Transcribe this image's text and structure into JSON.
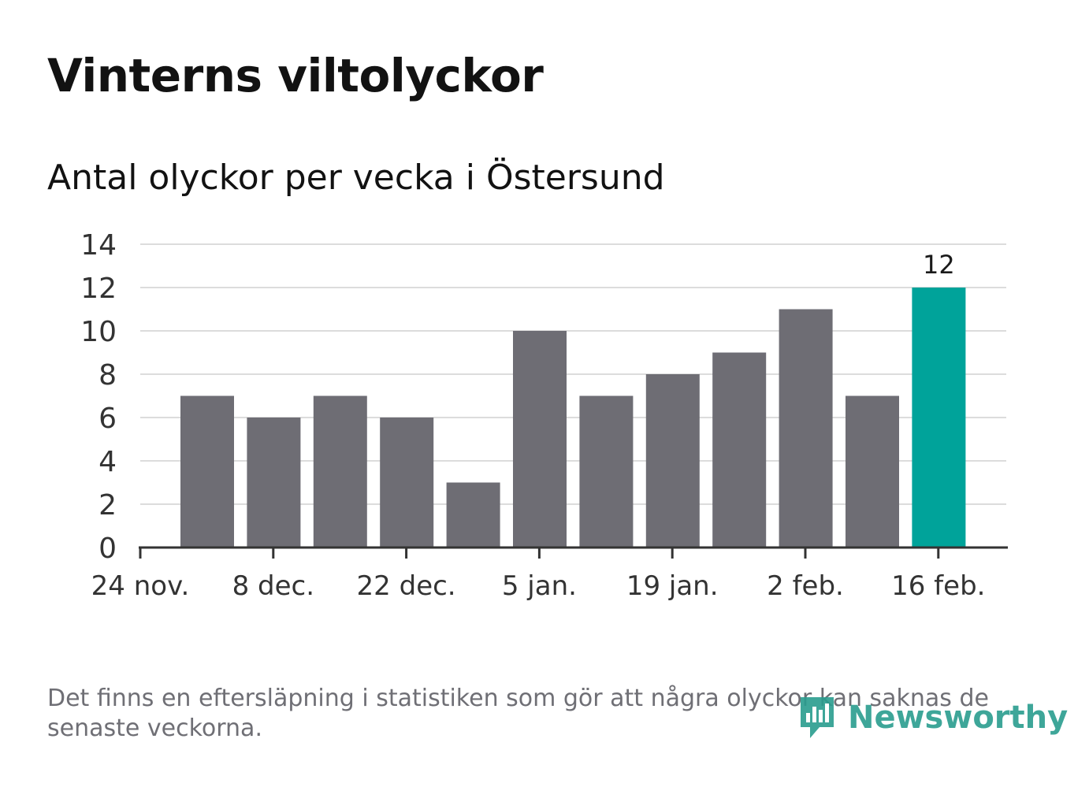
{
  "header": {
    "title": "Vinterns viltolyckor",
    "subtitle": "Antal olyckor per vecka i Östersund"
  },
  "footer": {
    "note": "Det finns en eftersläpning i statistiken som gör att några olyckor kan saknas de senaste veckorna.",
    "brand": "Newsworthy",
    "brand_icon": "newsworthy-logo-icon"
  },
  "colors": {
    "bar": "#6e6d74",
    "highlight": "#00a39a",
    "grid": "#dcdcdc",
    "axis": "#333333",
    "brand": "#2a9d8f"
  },
  "chart_data": {
    "type": "bar",
    "title": "Antal olyckor per vecka i Östersund",
    "xlabel": "",
    "ylabel": "",
    "ylim": [
      0,
      14
    ],
    "yticks": [
      0,
      2,
      4,
      6,
      8,
      10,
      12,
      14
    ],
    "xtick_labels": [
      "24 nov.",
      "8 dec.",
      "22 dec.",
      "5 jan.",
      "19 jan.",
      "2 feb.",
      "16 feb."
    ],
    "values": [
      7,
      6,
      7,
      6,
      3,
      10,
      7,
      8,
      9,
      11,
      7,
      12
    ],
    "highlight_index": 11,
    "highlight_label": "12",
    "grid": true
  }
}
